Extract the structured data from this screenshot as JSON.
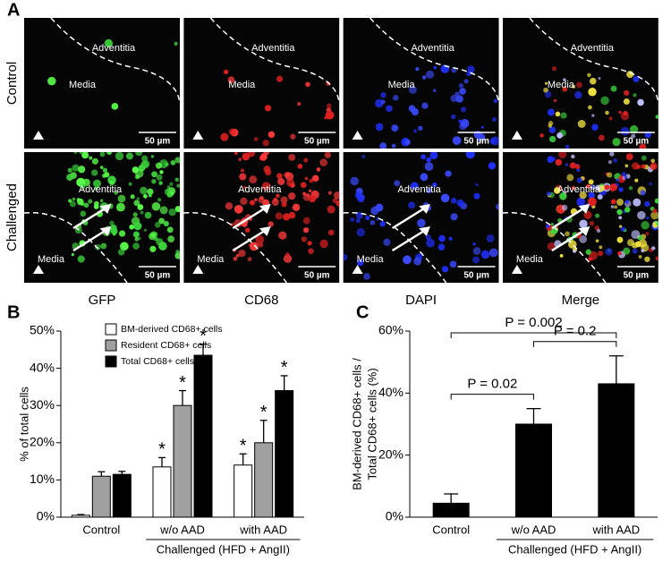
{
  "panel_labels": [
    "A",
    "B",
    "C"
  ],
  "panel_a": {
    "rows": [
      "Control",
      "Challenged"
    ],
    "columns": [
      "GFP",
      "CD68",
      "DAPI",
      "Merge"
    ],
    "region_labels": {
      "adventitia": "Adventitia",
      "media": "Media"
    },
    "scale_bar": "50 µm"
  },
  "chart_data": [
    {
      "type": "bar",
      "ylabel": [
        "% of total cells"
      ],
      "categories": [
        "Control",
        "w/o AAD",
        "with AAD"
      ],
      "group": {
        "label": "Challenged (HFD + AngII)",
        "categories": [
          "w/o AAD",
          "with AAD"
        ]
      },
      "series": [
        {
          "name": "BM-derived CD68+ cells",
          "color": "#ffffff",
          "values": [
            0.5,
            13.5,
            14
          ],
          "errors": [
            0.2,
            2.5,
            3
          ],
          "markers": [
            null,
            "*",
            "*"
          ]
        },
        {
          "name": "Resident CD68+ cells",
          "color": "#a0a0a0",
          "values": [
            11,
            30,
            20
          ],
          "errors": [
            1.2,
            4,
            6
          ],
          "markers": [
            null,
            "*",
            "*"
          ]
        },
        {
          "name": "Total CD68+ cells",
          "color": "#000000",
          "values": [
            11.5,
            43.5,
            34
          ],
          "errors": [
            0.8,
            3,
            4
          ],
          "markers": [
            null,
            "*",
            "*"
          ]
        }
      ],
      "ylim": [
        0,
        50
      ],
      "yticks": [
        {
          "value": 0,
          "label": "0%"
        },
        {
          "value": 10,
          "label": "10%"
        },
        {
          "value": 20,
          "label": "20%"
        },
        {
          "value": 30,
          "label": "30%"
        },
        {
          "value": 40,
          "label": "40%"
        },
        {
          "value": 50,
          "label": "50%"
        }
      ],
      "legend": "upper-left"
    },
    {
      "type": "bar",
      "ylabel": [
        "BM-derived CD68+ cells /",
        "Total CD68+ cells (%)"
      ],
      "categories": [
        "Control",
        "w/o AAD",
        "with AAD"
      ],
      "group": {
        "label": "Challenged (HFD + AngII)",
        "categories": [
          "w/o AAD",
          "with AAD"
        ]
      },
      "series": [
        {
          "color": "#000000",
          "values": [
            4.5,
            30,
            43
          ],
          "errors": [
            3,
            5,
            9
          ]
        }
      ],
      "ylim": [
        0,
        60
      ],
      "yticks": [
        {
          "value": 0,
          "label": "0%"
        },
        {
          "value": 20,
          "label": "20%"
        },
        {
          "value": 40,
          "label": "40%"
        },
        {
          "value": 60,
          "label": "60%"
        }
      ],
      "annotations": [
        {
          "text": "P = 0.02",
          "between": [
            "Control",
            "w/o AAD"
          ]
        },
        {
          "text": "P = 0.2",
          "between": [
            "w/o AAD",
            "with AAD"
          ]
        },
        {
          "text": "P = 0.002",
          "between": [
            "Control",
            "with AAD"
          ]
        }
      ]
    }
  ]
}
